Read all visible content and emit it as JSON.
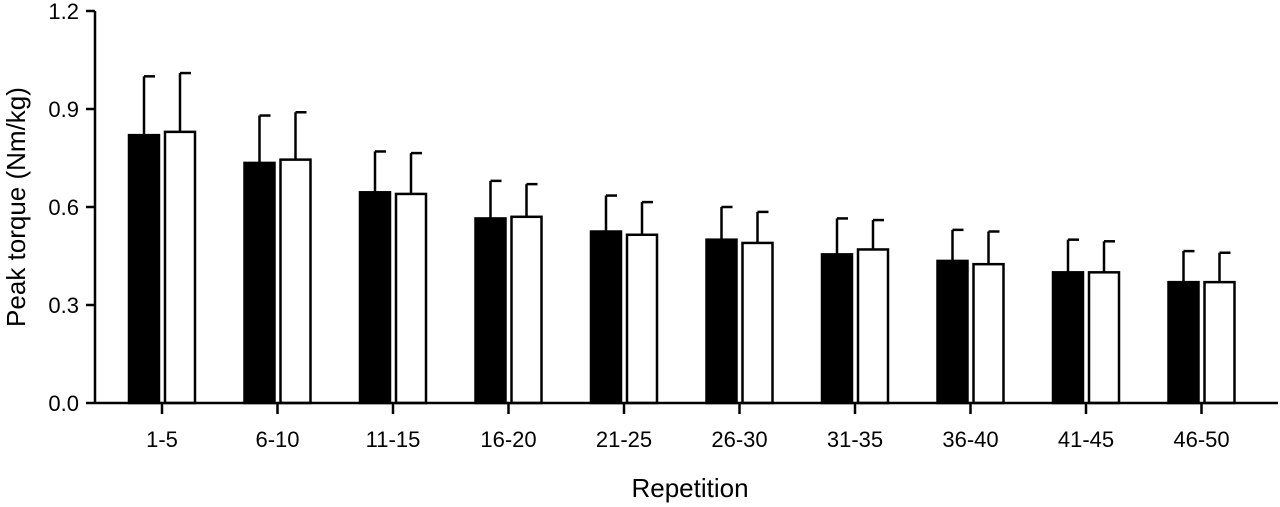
{
  "chart_data": {
    "type": "bar",
    "title": "",
    "xlabel": "Repetition",
    "ylabel": "Peak torque (Nm/kg)",
    "ylim": [
      0,
      1.2
    ],
    "yticks": [
      "0.0",
      "0.3",
      "0.6",
      "0.9",
      "1.2"
    ],
    "categories": [
      "1-5",
      "6-10",
      "11-15",
      "16-20",
      "21-25",
      "26-30",
      "31-35",
      "36-40",
      "41-45",
      "46-50"
    ],
    "series": [
      {
        "fill": "#000000",
        "values": [
          0.82,
          0.735,
          0.645,
          0.565,
          0.525,
          0.5,
          0.455,
          0.435,
          0.4,
          0.37
        ],
        "error": [
          0.18,
          0.145,
          0.125,
          0.115,
          0.11,
          0.1,
          0.11,
          0.095,
          0.1,
          0.095
        ]
      },
      {
        "fill": "#ffffff",
        "values": [
          0.83,
          0.745,
          0.64,
          0.57,
          0.515,
          0.49,
          0.47,
          0.425,
          0.4,
          0.37
        ],
        "error": [
          0.18,
          0.145,
          0.125,
          0.1,
          0.1,
          0.095,
          0.09,
          0.1,
          0.095,
          0.09
        ]
      }
    ],
    "grid": false,
    "legend": "none"
  }
}
